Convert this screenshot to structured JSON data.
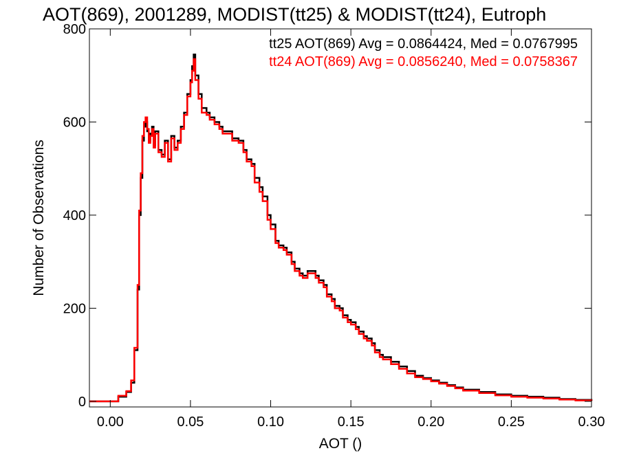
{
  "chart_data": {
    "type": "line",
    "title": "AOT(869), 2001289, MODIST(tt25) & MODIST(tt24), Eutroph",
    "xlabel": "AOT ()",
    "ylabel": "Number of Observations",
    "xlim": [
      -0.013,
      0.3
    ],
    "ylim": [
      -12,
      800
    ],
    "x_ticks": [
      0.0,
      0.05,
      0.1,
      0.15,
      0.2,
      0.25,
      0.3
    ],
    "x_tick_labels": [
      "0.00",
      "0.05",
      "0.10",
      "0.15",
      "0.20",
      "0.25",
      "0.30"
    ],
    "y_ticks": [
      0,
      200,
      400,
      600,
      800
    ],
    "y_tick_labels": [
      "0",
      "200",
      "400",
      "600",
      "800"
    ],
    "grid": false,
    "legend_position": "top-right",
    "annotations": [
      {
        "text": "tt25 AOT(869) Avg = 0.0864424, Med = 0.0767995",
        "color": "#000000"
      },
      {
        "text": "tt24 AOT(869) Avg = 0.0856240, Med = 0.0758367",
        "color": "#ff0000"
      }
    ],
    "series": [
      {
        "color": "#000000",
        "x": [
          -0.013,
          0.0,
          0.005,
          0.01,
          0.013,
          0.015,
          0.017,
          0.018,
          0.019,
          0.02,
          0.021,
          0.022,
          0.023,
          0.024,
          0.025,
          0.026,
          0.027,
          0.028,
          0.03,
          0.032,
          0.034,
          0.036,
          0.038,
          0.04,
          0.042,
          0.044,
          0.046,
          0.048,
          0.05,
          0.051,
          0.052,
          0.053,
          0.055,
          0.057,
          0.06,
          0.062,
          0.065,
          0.068,
          0.07,
          0.073,
          0.076,
          0.08,
          0.083,
          0.085,
          0.088,
          0.09,
          0.093,
          0.095,
          0.098,
          0.1,
          0.103,
          0.105,
          0.108,
          0.11,
          0.113,
          0.115,
          0.118,
          0.12,
          0.123,
          0.125,
          0.128,
          0.13,
          0.133,
          0.135,
          0.138,
          0.14,
          0.143,
          0.145,
          0.148,
          0.15,
          0.153,
          0.155,
          0.158,
          0.16,
          0.163,
          0.165,
          0.168,
          0.17,
          0.175,
          0.18,
          0.185,
          0.19,
          0.195,
          0.2,
          0.205,
          0.21,
          0.215,
          0.22,
          0.23,
          0.24,
          0.25,
          0.26,
          0.27,
          0.28,
          0.29,
          0.3
        ],
        "y": [
          0,
          0,
          10,
          20,
          40,
          110,
          240,
          400,
          480,
          560,
          590,
          600,
          580,
          560,
          575,
          590,
          550,
          580,
          540,
          530,
          560,
          520,
          570,
          545,
          560,
          590,
          620,
          660,
          690,
          720,
          745,
          700,
          660,
          630,
          620,
          610,
          600,
          590,
          580,
          580,
          565,
          560,
          540,
          520,
          510,
          480,
          460,
          440,
          400,
          380,
          345,
          335,
          330,
          320,
          300,
          285,
          275,
          270,
          280,
          280,
          270,
          260,
          250,
          230,
          220,
          205,
          200,
          185,
          175,
          170,
          160,
          150,
          140,
          135,
          125,
          110,
          100,
          95,
          85,
          75,
          65,
          55,
          50,
          45,
          40,
          35,
          30,
          25,
          20,
          15,
          12,
          10,
          8,
          5,
          3,
          1
        ]
      },
      {
        "color": "#ff0000",
        "x": [
          -0.013,
          0.0,
          0.005,
          0.01,
          0.013,
          0.015,
          0.017,
          0.018,
          0.019,
          0.02,
          0.021,
          0.022,
          0.023,
          0.024,
          0.025,
          0.026,
          0.027,
          0.028,
          0.03,
          0.032,
          0.034,
          0.036,
          0.038,
          0.04,
          0.042,
          0.044,
          0.046,
          0.048,
          0.05,
          0.051,
          0.052,
          0.053,
          0.055,
          0.057,
          0.06,
          0.062,
          0.065,
          0.068,
          0.07,
          0.073,
          0.076,
          0.08,
          0.083,
          0.085,
          0.088,
          0.09,
          0.093,
          0.095,
          0.098,
          0.1,
          0.103,
          0.105,
          0.108,
          0.11,
          0.113,
          0.115,
          0.118,
          0.12,
          0.123,
          0.125,
          0.128,
          0.13,
          0.133,
          0.135,
          0.138,
          0.14,
          0.143,
          0.145,
          0.148,
          0.15,
          0.153,
          0.155,
          0.158,
          0.16,
          0.163,
          0.165,
          0.168,
          0.17,
          0.175,
          0.18,
          0.185,
          0.19,
          0.195,
          0.2,
          0.205,
          0.21,
          0.215,
          0.22,
          0.23,
          0.24,
          0.25,
          0.26,
          0.27,
          0.28,
          0.29,
          0.3
        ],
        "y": [
          0,
          0,
          12,
          22,
          45,
          115,
          250,
          410,
          490,
          570,
          600,
          610,
          585,
          555,
          570,
          585,
          545,
          575,
          535,
          525,
          555,
          515,
          565,
          540,
          555,
          585,
          615,
          655,
          685,
          710,
          735,
          690,
          650,
          620,
          615,
          605,
          595,
          585,
          575,
          575,
          560,
          555,
          535,
          515,
          505,
          470,
          450,
          430,
          390,
          370,
          340,
          330,
          325,
          315,
          295,
          280,
          270,
          265,
          275,
          275,
          265,
          255,
          245,
          225,
          215,
          200,
          195,
          180,
          170,
          165,
          155,
          145,
          135,
          130,
          120,
          105,
          95,
          90,
          80,
          70,
          60,
          52,
          48,
          43,
          38,
          33,
          28,
          23,
          18,
          13,
          10,
          8,
          6,
          4,
          2,
          1
        ]
      }
    ]
  }
}
